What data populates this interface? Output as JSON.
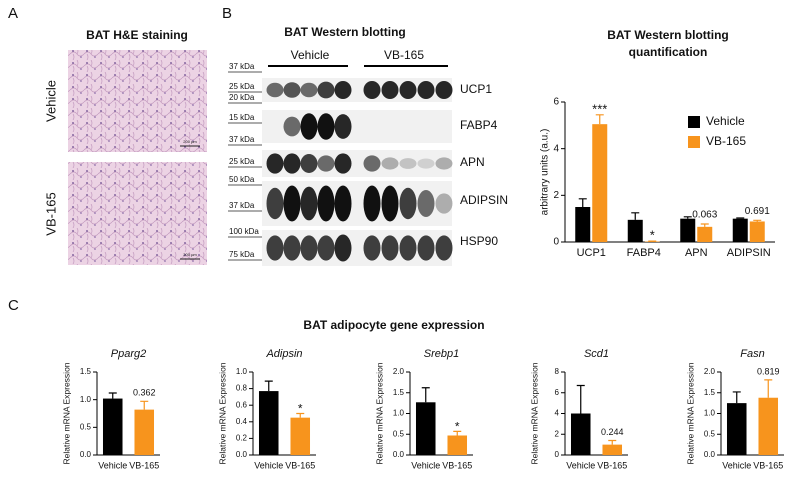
{
  "panel_a": {
    "label": "A",
    "title": "BAT H&E staining",
    "rows": [
      "Vehicle",
      "VB-165"
    ],
    "scale_bar": "200 µm"
  },
  "panel_b": {
    "label": "B",
    "title": "BAT Western blotting",
    "groups": [
      "Vehicle",
      "VB-165"
    ],
    "markers": [
      "37 kDa",
      "25 kDa",
      "20 kDa",
      "15 kDa",
      "37 kDa",
      "25 kDa",
      "50 kDa",
      "37 kDa",
      "100 kDa",
      "75 kDa"
    ],
    "proteins": [
      "UCP1",
      "FABP4",
      "APN",
      "ADIPSIN",
      "HSP90"
    ]
  },
  "panel_c": {
    "label": "C",
    "title": "BAT adipocyte gene expression"
  },
  "chart_data": [
    {
      "type": "bar",
      "title": [
        "BAT Western blotting",
        "quantification"
      ],
      "y_label": "arbitrary units (a.u.)",
      "categories": [
        "UCP1",
        "FABP4",
        "APN",
        "ADIPSIN"
      ],
      "series": [
        {
          "name": "Vehicle",
          "color": "#000000",
          "values": [
            1.5,
            0.95,
            1.0,
            1.0
          ],
          "errors": [
            0.35,
            0.3,
            0.08,
            0.03
          ]
        },
        {
          "name": "VB-165",
          "color": "#f7941d",
          "values": [
            5.05,
            0.02,
            0.65,
            0.88
          ],
          "errors": [
            0.4,
            0.02,
            0.12,
            0.05
          ]
        }
      ],
      "annotations": [
        "***",
        "*",
        "0.063",
        "0.691"
      ],
      "ylim": [
        0,
        6
      ],
      "yticks": [
        0,
        2,
        4,
        6
      ],
      "legend": "top-right"
    },
    {
      "type": "bar",
      "title": "Pparg2",
      "y_label": "Relative mRNA Expression",
      "categories": [
        "Vehicle",
        "VB-165"
      ],
      "values": [
        1.02,
        0.82
      ],
      "errors": [
        0.1,
        0.15
      ],
      "colors": [
        "#000000",
        "#f7941d"
      ],
      "annotation": "0.362",
      "ylim": [
        0,
        1.5
      ],
      "yticks": [
        {
          "value": 0,
          "label": "0.0"
        },
        0.5,
        {
          "value": 1,
          "label": "1.0"
        },
        1.5
      ]
    },
    {
      "type": "bar",
      "title": "Adipsin",
      "y_label": "Relative mRNA Expression",
      "categories": [
        "Vehicle",
        "VB-165"
      ],
      "values": [
        0.77,
        0.45
      ],
      "errors": [
        0.12,
        0.05
      ],
      "colors": [
        "#000000",
        "#f7941d"
      ],
      "annotation": "*",
      "ylim": [
        0,
        1
      ],
      "yticks": [
        {
          "value": 0,
          "label": "0.0"
        },
        0.2,
        0.4,
        0.6,
        0.8,
        {
          "value": 1,
          "label": "1.0"
        }
      ]
    },
    {
      "type": "bar",
      "title": "Srebp1",
      "y_label": "Relative mRNA Expression",
      "categories": [
        "Vehicle",
        "VB-165"
      ],
      "values": [
        1.27,
        0.47
      ],
      "errors": [
        0.35,
        0.1
      ],
      "colors": [
        "#000000",
        "#f7941d"
      ],
      "annotation": "*",
      "ylim": [
        0,
        2
      ],
      "yticks": [
        {
          "value": 0,
          "label": "0.0"
        },
        0.5,
        {
          "value": 1,
          "label": "1.0"
        },
        1.5,
        {
          "value": 2,
          "label": "2.0"
        }
      ]
    },
    {
      "type": "bar",
      "title": "Scd1",
      "y_label": "Relative mRNA Expression",
      "categories": [
        "Vehicle",
        "VB-165"
      ],
      "values": [
        4.0,
        1.0
      ],
      "errors": [
        2.7,
        0.4
      ],
      "colors": [
        "#000000",
        "#f7941d"
      ],
      "annotation": "0.244",
      "ylim": [
        0,
        8
      ],
      "yticks": [
        0,
        2,
        4,
        6,
        8
      ]
    },
    {
      "type": "bar",
      "title": "Fasn",
      "y_label": "Relative mRNA Expression",
      "categories": [
        "Vehicle",
        "VB-165"
      ],
      "values": [
        1.25,
        1.38
      ],
      "errors": [
        0.27,
        0.43
      ],
      "colors": [
        "#000000",
        "#f7941d"
      ],
      "annotation": "0.819",
      "ylim": [
        0,
        2
      ],
      "yticks": [
        {
          "value": 0,
          "label": "0.0"
        },
        0.5,
        {
          "value": 1,
          "label": "1.0"
        },
        1.5,
        {
          "value": 2,
          "label": "2.0"
        }
      ]
    }
  ]
}
